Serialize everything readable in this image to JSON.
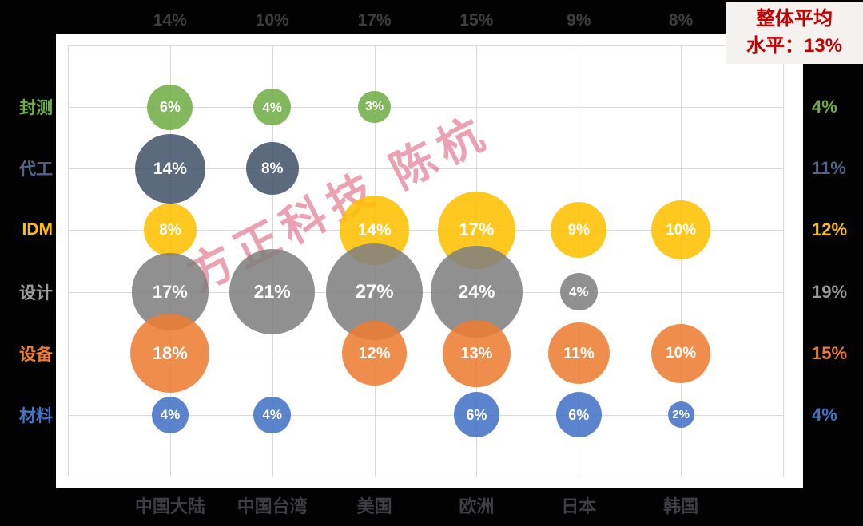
{
  "chart_data": {
    "type": "bubble",
    "watermark": "方正科技  陈杭",
    "overall_average": {
      "line1": "整体平均",
      "line2": "水平：13%"
    },
    "value_suffix": "%",
    "columns": [
      "中国大陆",
      "中国台湾",
      "美国",
      "欧洲",
      "日本",
      "韩国"
    ],
    "column_totals": [
      "14%",
      "10%",
      "17%",
      "15%",
      "9%",
      "8%"
    ],
    "rows": [
      {
        "label": "封测",
        "color": "#70AD47",
        "text_color": "#70AD47",
        "row_average": "4%",
        "values": [
          6,
          4,
          3,
          null,
          null,
          null
        ]
      },
      {
        "label": "代工",
        "color": "#44546A",
        "text_color": "#51678a",
        "row_average": "11%",
        "values": [
          14,
          8,
          null,
          null,
          null,
          null
        ]
      },
      {
        "label": "IDM",
        "color": "#FFC000",
        "text_color": "#FFC000",
        "row_average": "12%",
        "values": [
          8,
          null,
          14,
          17,
          9,
          10
        ]
      },
      {
        "label": "设计",
        "color": "#808080",
        "text_color": "#9a9a9a",
        "row_average": "19%",
        "values": [
          17,
          21,
          27,
          24,
          4,
          null
        ]
      },
      {
        "label": "设备",
        "color": "#ED7D31",
        "text_color": "#ED7D31",
        "row_average": "15%",
        "values": [
          18,
          null,
          12,
          13,
          11,
          10
        ]
      },
      {
        "label": "材料",
        "color": "#4472C4",
        "text_color": "#4472C4",
        "row_average": "4%",
        "values": [
          4,
          4,
          null,
          6,
          6,
          2
        ]
      }
    ],
    "layout_hints": {
      "grid": "on",
      "gridlines_through_centers": true,
      "bubble_radius_px_per_sqrt_value": 11.7,
      "plot_background": "#ffffff",
      "page_background": "#020202",
      "gridline_color": "#d9d9d9",
      "axis_text_color": "#3f3f3f"
    }
  }
}
